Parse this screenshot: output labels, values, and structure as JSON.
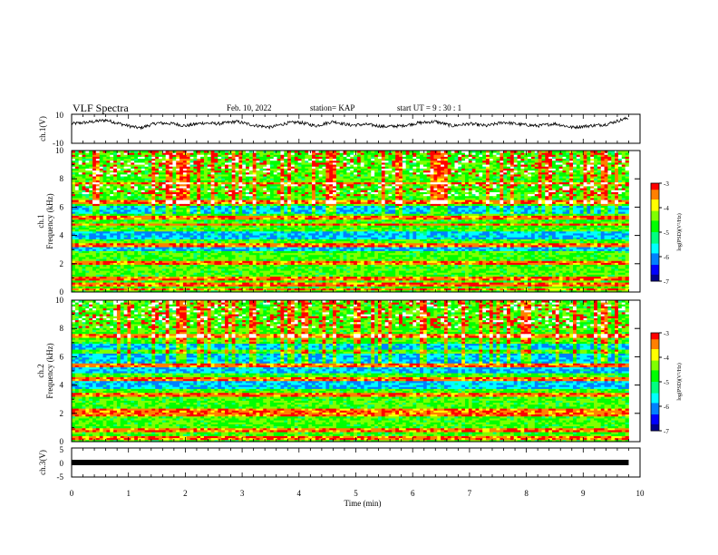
{
  "header": {
    "title": "VLF Spectra",
    "date": "Feb. 10, 2022",
    "station": "station= KAP",
    "start": "start  UT  =   9  : 30 : 1"
  },
  "axes_text": {
    "ch1_label": "ch.1(V)",
    "ch1_ticks": [
      "10",
      "-10"
    ],
    "spec1_label_top": "ch.1",
    "spec2_label_top": "ch.2",
    "freq_label": "Frequency (kHz)",
    "freq_ticks": [
      "0",
      "2",
      "4",
      "6",
      "8",
      "10"
    ],
    "ch3_label": "ch.3(V)",
    "ch3_ticks": [
      "5",
      "0",
      "-5"
    ],
    "time_ticks": [
      "0",
      "1",
      "2",
      "3",
      "4",
      "5",
      "6",
      "7",
      "8",
      "9",
      "10"
    ],
    "xlabel": "Time (min)",
    "colorbar_label": "log(PSD)(V²/Hz)",
    "colorbar_ticks": [
      "-3",
      "-4",
      "-5",
      "-6",
      "-7"
    ]
  },
  "colors": {
    "colormap": [
      "#00008b",
      "#0000ff",
      "#0080ff",
      "#00ffff",
      "#00ff80",
      "#00ff00",
      "#80ff00",
      "#ffff00",
      "#ff8000",
      "#ff0000",
      "#ffffff"
    ],
    "line": "#000000"
  },
  "chart_data": [
    {
      "type": "line",
      "panel": "ch.1",
      "ylabel": "ch.1(V)",
      "ylim": [
        -10,
        10
      ],
      "xlim": [
        0,
        10
      ],
      "series": [
        {
          "values_description_points": [
            [
              0.0,
              3.5
            ],
            [
              0.3,
              4.5
            ],
            [
              0.6,
              6.0
            ],
            [
              0.8,
              4.0
            ],
            [
              1.0,
              2.0
            ],
            [
              1.2,
              0.5
            ],
            [
              1.5,
              4.0
            ],
            [
              1.8,
              3.5
            ],
            [
              2.0,
              2.0
            ],
            [
              2.3,
              4.0
            ],
            [
              2.6,
              3.5
            ],
            [
              2.9,
              5.0
            ],
            [
              3.2,
              2.5
            ],
            [
              3.5,
              1.0
            ],
            [
              3.8,
              4.0
            ],
            [
              4.0,
              4.5
            ],
            [
              4.3,
              2.0
            ],
            [
              4.6,
              5.0
            ],
            [
              4.9,
              2.5
            ],
            [
              5.2,
              3.0
            ],
            [
              5.5,
              1.5
            ],
            [
              5.8,
              2.0
            ],
            [
              6.1,
              4.0
            ],
            [
              6.4,
              5.0
            ],
            [
              6.7,
              2.0
            ],
            [
              7.0,
              3.5
            ],
            [
              7.3,
              2.0
            ],
            [
              7.6,
              4.5
            ],
            [
              7.9,
              3.0
            ],
            [
              8.2,
              2.0
            ],
            [
              8.5,
              3.5
            ],
            [
              8.8,
              1.0
            ],
            [
              9.1,
              2.0
            ],
            [
              9.4,
              3.0
            ],
            [
              9.7,
              6.5
            ],
            [
              9.8,
              7.5
            ]
          ]
        }
      ]
    },
    {
      "type": "heatmap",
      "panel": "ch.1 spectrogram",
      "xlim": [
        0,
        10
      ],
      "ylim": [
        0,
        10
      ],
      "zlim": [
        -7,
        -3
      ],
      "strong_bands_khz": [
        0.2,
        0.6,
        1.0,
        2.1,
        3.3,
        4.8,
        5.3,
        6.4,
        7.7
      ],
      "quiet_bands_khz": [
        [
          2.9,
          3.2
        ],
        [
          3.7,
          4.3
        ],
        [
          5.6,
          6.1
        ]
      ],
      "sparse_bins_khz": [
        [
          6.8,
          7.6
        ],
        [
          8.2,
          10.0
        ]
      ]
    },
    {
      "type": "heatmap",
      "panel": "ch.2 spectrogram",
      "xlim": [
        0,
        10
      ],
      "ylim": [
        0,
        10
      ],
      "zlim": [
        -7,
        -3
      ],
      "strong_bands_khz": [
        0.3,
        0.8,
        1.9,
        2.2,
        3.3,
        4.4,
        5.4,
        7.5
      ],
      "quiet_bands_khz": [
        [
          3.7,
          4.3
        ],
        [
          4.9,
          5.3
        ],
        [
          5.6,
          6.2
        ],
        [
          6.5,
          7.0
        ]
      ],
      "sparse_bins_khz": [
        [
          8.0,
          10.0
        ]
      ]
    },
    {
      "type": "line",
      "panel": "ch.3",
      "ylabel": "ch.3(V)",
      "ylim": [
        -5,
        5
      ],
      "xlim": [
        0,
        10
      ],
      "series": [
        {
          "values_description_points": [
            [
              0.0,
              0.0
            ],
            [
              9.8,
              0.0
            ]
          ]
        }
      ]
    }
  ]
}
